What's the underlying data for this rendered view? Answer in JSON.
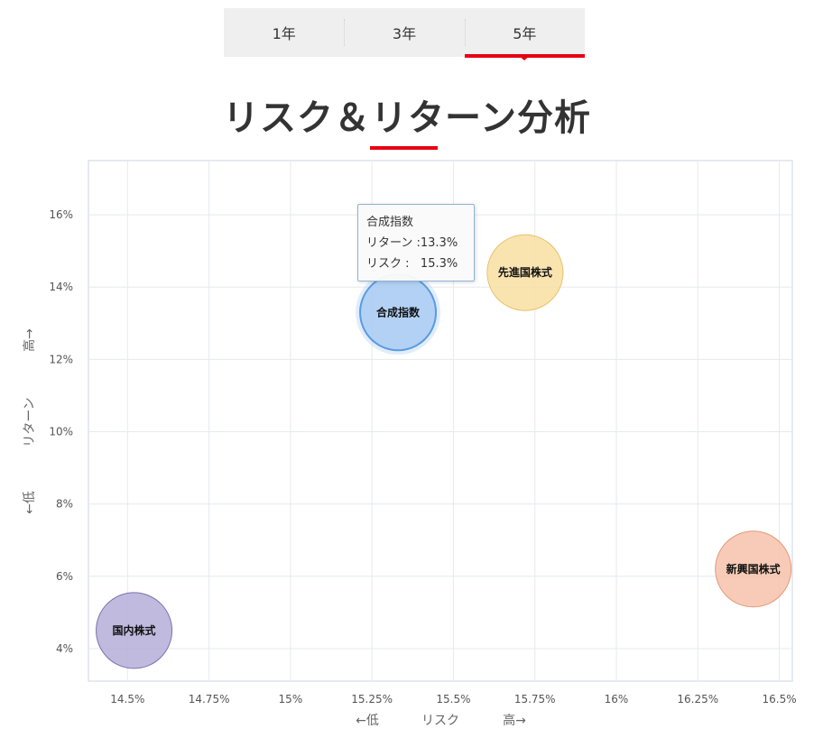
{
  "tabs": [
    {
      "label": "1年",
      "active": false
    },
    {
      "label": "3年",
      "active": false
    },
    {
      "label": "5年",
      "active": true
    }
  ],
  "title": "リスク＆リターン分析",
  "tooltip": {
    "name": "合成指数",
    "return_label": "リターン :",
    "return_value": "13.3%",
    "risk_label": "リスク :",
    "risk_value": "15.3%"
  },
  "chart_data": {
    "type": "scatter",
    "subtype": "bubble",
    "xlabel": {
      "low": "←低",
      "name": "リスク",
      "high": "高→"
    },
    "ylabel": {
      "low": "←低",
      "name": "リターン",
      "high": "高→"
    },
    "xlim": [
      14.38,
      16.54
    ],
    "ylim": [
      3.1,
      17.5
    ],
    "x_ticks": [
      14.5,
      14.75,
      15,
      15.25,
      15.5,
      15.75,
      16,
      16.25,
      16.5
    ],
    "x_tick_labels": [
      "14.5%",
      "14.75%",
      "15%",
      "15.25%",
      "15.5%",
      "15.75%",
      "16%",
      "16.25%",
      "16.5%"
    ],
    "y_ticks": [
      4,
      6,
      8,
      10,
      12,
      14,
      16
    ],
    "y_tick_labels": [
      "4%",
      "6%",
      "8%",
      "10%",
      "12%",
      "14%",
      "16%"
    ],
    "grid": true,
    "series": [
      {
        "name": "国内株式",
        "risk": 14.52,
        "return": 4.5,
        "color": "#b5aed8",
        "stroke": "#7b72b0",
        "highlighted": false
      },
      {
        "name": "合成指数",
        "risk": 15.33,
        "return": 13.3,
        "color": "#a9cbf2",
        "stroke": "#5a9be0",
        "highlighted": true
      },
      {
        "name": "先進国株式",
        "risk": 15.72,
        "return": 14.4,
        "color": "#f8dfa2",
        "stroke": "#e6c26a",
        "highlighted": false
      },
      {
        "name": "新興国株式",
        "risk": 16.42,
        "return": 6.2,
        "color": "#f6c2aa",
        "stroke": "#e59a7a",
        "highlighted": false
      }
    ]
  }
}
